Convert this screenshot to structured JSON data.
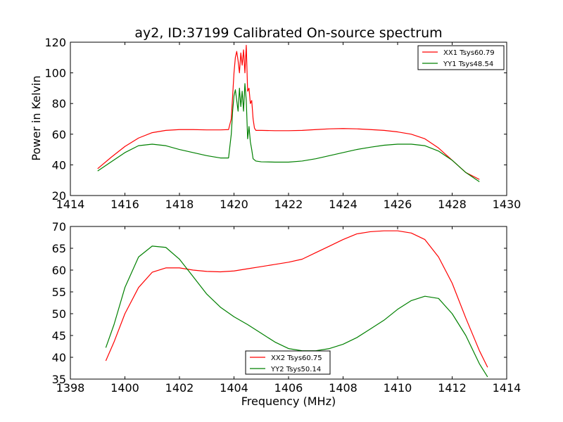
{
  "figure": {
    "background": "#ffffff"
  },
  "chart_data": [
    {
      "type": "line",
      "title": "ay2, ID:37199 Calibrated On-source spectrum",
      "xlabel": "",
      "ylabel": "Power in Kelvin",
      "xlim": [
        1414,
        1430
      ],
      "ylim": [
        20,
        120
      ],
      "xticks": [
        1414,
        1416,
        1418,
        1420,
        1422,
        1424,
        1426,
        1428,
        1430
      ],
      "yticks": [
        20,
        40,
        60,
        80,
        100,
        120
      ],
      "xtick_labels": [
        "1414",
        "1416",
        "1418",
        "1420",
        "1422",
        "1424",
        "1426",
        "1428",
        "1430"
      ],
      "ytick_labels": [
        "20",
        "40",
        "60",
        "80",
        "100",
        "120"
      ],
      "grid": false,
      "legend_position": "top-right",
      "series": [
        {
          "name": "XX1 Tsys60.79",
          "color": "#ff0000",
          "points": [
            [
              1415.0,
              37.5
            ],
            [
              1415.5,
              45.0
            ],
            [
              1416.0,
              52.0
            ],
            [
              1416.5,
              57.5
            ],
            [
              1417.0,
              61.0
            ],
            [
              1417.5,
              62.5
            ],
            [
              1418.0,
              63.0
            ],
            [
              1418.5,
              63.0
            ],
            [
              1419.0,
              62.8
            ],
            [
              1419.5,
              62.8
            ],
            [
              1419.8,
              63.0
            ],
            [
              1419.9,
              70.0
            ],
            [
              1419.95,
              85.0
            ],
            [
              1420.0,
              100.0
            ],
            [
              1420.05,
              110.0
            ],
            [
              1420.1,
              114.0
            ],
            [
              1420.15,
              108.0
            ],
            [
              1420.2,
              100.0
            ],
            [
              1420.25,
              113.0
            ],
            [
              1420.3,
              105.0
            ],
            [
              1420.35,
              115.0
            ],
            [
              1420.4,
              100.0
            ],
            [
              1420.45,
              118.0
            ],
            [
              1420.5,
              88.0
            ],
            [
              1420.55,
              90.0
            ],
            [
              1420.6,
              80.0
            ],
            [
              1420.65,
              82.0
            ],
            [
              1420.7,
              70.0
            ],
            [
              1420.75,
              64.0
            ],
            [
              1420.8,
              62.5
            ],
            [
              1421.0,
              62.5
            ],
            [
              1421.5,
              62.3
            ],
            [
              1422.0,
              62.3
            ],
            [
              1422.5,
              62.5
            ],
            [
              1423.0,
              63.0
            ],
            [
              1423.5,
              63.5
            ],
            [
              1424.0,
              63.7
            ],
            [
              1424.5,
              63.5
            ],
            [
              1425.0,
              63.0
            ],
            [
              1425.5,
              62.5
            ],
            [
              1426.0,
              61.5
            ],
            [
              1426.5,
              60.0
            ],
            [
              1427.0,
              57.0
            ],
            [
              1427.5,
              51.0
            ],
            [
              1428.0,
              43.0
            ],
            [
              1428.5,
              35.0
            ],
            [
              1429.0,
              30.5
            ]
          ]
        },
        {
          "name": "YY1 Tsys48.54",
          "color": "#008000",
          "points": [
            [
              1415.0,
              36.0
            ],
            [
              1415.5,
              42.0
            ],
            [
              1416.0,
              48.0
            ],
            [
              1416.5,
              52.5
            ],
            [
              1417.0,
              53.5
            ],
            [
              1417.5,
              52.5
            ],
            [
              1418.0,
              50.0
            ],
            [
              1418.5,
              48.0
            ],
            [
              1419.0,
              46.0
            ],
            [
              1419.5,
              44.5
            ],
            [
              1419.8,
              44.5
            ],
            [
              1419.9,
              60.0
            ],
            [
              1419.95,
              75.0
            ],
            [
              1420.0,
              85.0
            ],
            [
              1420.05,
              89.0
            ],
            [
              1420.1,
              82.0
            ],
            [
              1420.15,
              75.0
            ],
            [
              1420.2,
              90.0
            ],
            [
              1420.25,
              78.0
            ],
            [
              1420.3,
              88.0
            ],
            [
              1420.35,
              75.0
            ],
            [
              1420.4,
              93.0
            ],
            [
              1420.45,
              82.0
            ],
            [
              1420.5,
              57.0
            ],
            [
              1420.55,
              65.0
            ],
            [
              1420.6,
              55.0
            ],
            [
              1420.65,
              50.0
            ],
            [
              1420.7,
              44.0
            ],
            [
              1420.8,
              42.5
            ],
            [
              1421.0,
              42.0
            ],
            [
              1421.5,
              41.8
            ],
            [
              1422.0,
              41.8
            ],
            [
              1422.5,
              42.5
            ],
            [
              1423.0,
              44.0
            ],
            [
              1423.5,
              46.0
            ],
            [
              1424.0,
              48.0
            ],
            [
              1424.5,
              50.0
            ],
            [
              1425.0,
              51.5
            ],
            [
              1425.5,
              52.8
            ],
            [
              1426.0,
              53.5
            ],
            [
              1426.5,
              53.5
            ],
            [
              1427.0,
              52.5
            ],
            [
              1427.5,
              49.0
            ],
            [
              1428.0,
              43.0
            ],
            [
              1428.5,
              35.0
            ],
            [
              1429.0,
              29.0
            ]
          ]
        }
      ]
    },
    {
      "type": "line",
      "title": "",
      "xlabel": "Frequency (MHz)",
      "ylabel": "",
      "xlim": [
        1398,
        1414
      ],
      "ylim": [
        35,
        70
      ],
      "xticks": [
        1398,
        1400,
        1402,
        1404,
        1406,
        1408,
        1410,
        1412,
        1414
      ],
      "yticks": [
        35,
        40,
        45,
        50,
        55,
        60,
        65,
        70
      ],
      "xtick_labels": [
        "1398",
        "1400",
        "1402",
        "1404",
        "1406",
        "1408",
        "1410",
        "1412",
        "1414"
      ],
      "ytick_labels": [
        "35",
        "40",
        "45",
        "50",
        "55",
        "60",
        "65",
        "70"
      ],
      "grid": false,
      "legend_position": "bottom-center",
      "series": [
        {
          "name": "XX2 Tsys60.75",
          "color": "#ff0000",
          "points": [
            [
              1399.3,
              39.2
            ],
            [
              1399.6,
              43.5
            ],
            [
              1400.0,
              50.0
            ],
            [
              1400.5,
              56.0
            ],
            [
              1401.0,
              59.5
            ],
            [
              1401.5,
              60.5
            ],
            [
              1402.0,
              60.5
            ],
            [
              1402.5,
              60.0
            ],
            [
              1403.0,
              59.7
            ],
            [
              1403.5,
              59.6
            ],
            [
              1404.0,
              59.8
            ],
            [
              1404.5,
              60.3
            ],
            [
              1405.0,
              60.8
            ],
            [
              1405.5,
              61.3
            ],
            [
              1406.0,
              61.8
            ],
            [
              1406.5,
              62.5
            ],
            [
              1407.0,
              64.0
            ],
            [
              1407.5,
              65.5
            ],
            [
              1408.0,
              67.0
            ],
            [
              1408.5,
              68.3
            ],
            [
              1409.0,
              68.8
            ],
            [
              1409.5,
              69.0
            ],
            [
              1410.0,
              69.0
            ],
            [
              1410.5,
              68.5
            ],
            [
              1411.0,
              67.0
            ],
            [
              1411.5,
              63.0
            ],
            [
              1412.0,
              57.0
            ],
            [
              1412.5,
              49.0
            ],
            [
              1413.0,
              41.5
            ],
            [
              1413.3,
              37.7
            ]
          ]
        },
        {
          "name": "YY2 Tsys50.14",
          "color": "#008000",
          "points": [
            [
              1399.3,
              42.2
            ],
            [
              1399.6,
              47.5
            ],
            [
              1400.0,
              56.0
            ],
            [
              1400.5,
              63.0
            ],
            [
              1401.0,
              65.5
            ],
            [
              1401.5,
              65.2
            ],
            [
              1402.0,
              62.5
            ],
            [
              1402.5,
              58.5
            ],
            [
              1403.0,
              54.5
            ],
            [
              1403.5,
              51.5
            ],
            [
              1404.0,
              49.3
            ],
            [
              1404.5,
              47.5
            ],
            [
              1405.0,
              45.5
            ],
            [
              1405.5,
              43.5
            ],
            [
              1406.0,
              42.0
            ],
            [
              1406.5,
              41.5
            ],
            [
              1407.0,
              41.5
            ],
            [
              1407.5,
              42.0
            ],
            [
              1408.0,
              43.0
            ],
            [
              1408.5,
              44.5
            ],
            [
              1409.0,
              46.5
            ],
            [
              1409.5,
              48.5
            ],
            [
              1410.0,
              51.0
            ],
            [
              1410.5,
              53.0
            ],
            [
              1411.0,
              54.0
            ],
            [
              1411.5,
              53.5
            ],
            [
              1412.0,
              50.0
            ],
            [
              1412.5,
              45.0
            ],
            [
              1413.0,
              38.5
            ],
            [
              1413.3,
              35.5
            ]
          ]
        }
      ]
    }
  ]
}
